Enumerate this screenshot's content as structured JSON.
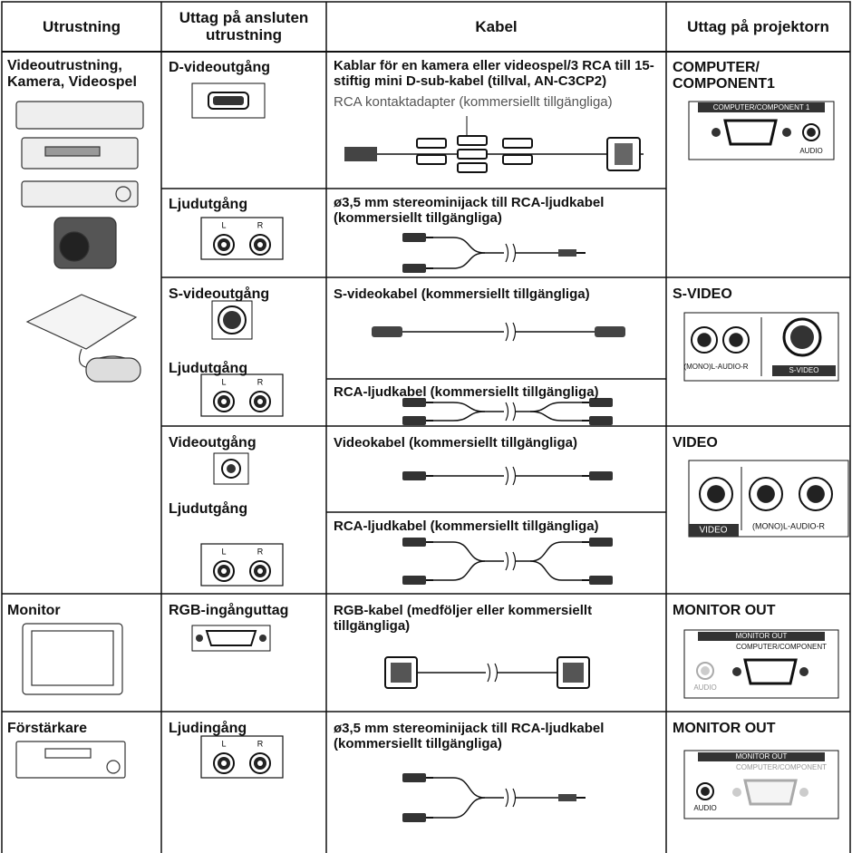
{
  "table": {
    "header": [
      "Utrustning",
      "Uttag på ansluten utrustning",
      "Kabel",
      "Uttag på projektorn"
    ],
    "equipment": [
      "Videoutrustning, Kamera, Videospel",
      "Monitor",
      "Förstärkare"
    ],
    "outputs": [
      "D-videoutgång",
      "Ljudutgång",
      "S-videoutgång",
      "Ljudutgång",
      "Videoutgång",
      "Ljudutgång",
      "RGB-ingånguttag",
      "Ljudingång"
    ],
    "jack_labels": [
      "L",
      "R"
    ],
    "cables": [
      "Kablar för en kamera eller videospel/3 RCA till 15-stiftig mini D-sub-kabel (tillval, AN-C3CP2)",
      "ø3,5 mm stereominijack till RCA-ljudkabel (kommersiellt tillgängliga)",
      "S-videokabel (kommersiellt tillgängliga)",
      "RCA-ljudkabel (kommersiellt tillgängliga)",
      "Videokabel (kommersiellt tillgängliga)",
      "RCA-ljudkabel (kommersiellt tillgängliga)",
      "RGB-kabel (medföljer eller kommersiellt tillgängliga)",
      "ø3,5 mm stereominijack till RCA-ljudkabel (kommersiellt tillgängliga)"
    ],
    "cable_note": "RCA kontaktadapter (kommersiellt tillgängliga)",
    "projector": [
      {
        "terminal": "COMPUTER/ COMPONENT1",
        "panel": [
          "COMPUTER/COMPONENT 1",
          "AUDIO"
        ]
      },
      {
        "terminal": "S-VIDEO",
        "panel": [
          "(MONO)L-AUDIO-R",
          "S-VIDEO"
        ]
      },
      {
        "terminal": "VIDEO",
        "panel": [
          "VIDEO",
          "(MONO)L-AUDIO-R"
        ]
      },
      {
        "terminal": "MONITOR OUT",
        "panel": [
          "MONITOR OUT",
          "COMPUTER/COMPONENT",
          "AUDIO"
        ]
      },
      {
        "terminal": "MONITOR OUT",
        "panel": [
          "MONITOR OUT",
          "COMPUTER/COMPONENT",
          "AUDIO"
        ]
      }
    ]
  }
}
